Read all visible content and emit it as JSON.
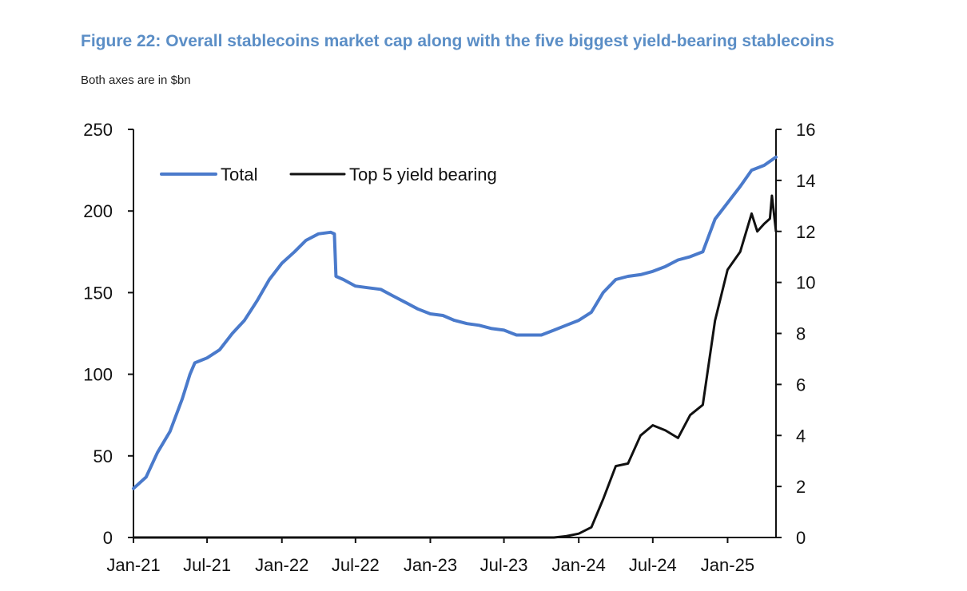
{
  "figure": {
    "title": "Figure 22: Overall stablecoins market cap along with the five biggest yield-bearing stablecoins",
    "subtitle": "Both axes are in $bn"
  },
  "chart_data": {
    "type": "line",
    "title": "Figure 22: Overall stablecoins market cap along with the five biggest yield-bearing stablecoins",
    "subtitle": "Both axes are in $bn",
    "xlabel": "",
    "ylabel": "",
    "x_ticks": [
      "Jan-21",
      "Jul-21",
      "Jan-22",
      "Jul-22",
      "Jan-23",
      "Jul-23",
      "Jan-24",
      "Jul-24",
      "Jan-25"
    ],
    "x_range": [
      "2021-01-01",
      "2025-04-30"
    ],
    "y_left": {
      "range": [
        0,
        250
      ],
      "ticks": [
        0,
        50,
        100,
        150,
        200,
        250
      ]
    },
    "y_right": {
      "range": [
        0,
        16
      ],
      "ticks": [
        0,
        2,
        4,
        6,
        8,
        10,
        12,
        14,
        16
      ]
    },
    "grid": false,
    "legend": {
      "position": "top-left",
      "entries": [
        "Total",
        "Top 5 yield bearing"
      ]
    },
    "series": [
      {
        "name": "Total",
        "axis": "left",
        "color": "#4a7acb",
        "points": [
          [
            "2021-01-01",
            30
          ],
          [
            "2021-02-01",
            37
          ],
          [
            "2021-03-01",
            52
          ],
          [
            "2021-04-01",
            65
          ],
          [
            "2021-05-01",
            85
          ],
          [
            "2021-05-20",
            100
          ],
          [
            "2021-06-01",
            107
          ],
          [
            "2021-07-01",
            110
          ],
          [
            "2021-08-01",
            115
          ],
          [
            "2021-09-01",
            125
          ],
          [
            "2021-10-01",
            133
          ],
          [
            "2021-11-01",
            145
          ],
          [
            "2021-12-01",
            158
          ],
          [
            "2022-01-01",
            168
          ],
          [
            "2022-02-01",
            175
          ],
          [
            "2022-03-01",
            182
          ],
          [
            "2022-04-01",
            186
          ],
          [
            "2022-05-01",
            187
          ],
          [
            "2022-05-10",
            186
          ],
          [
            "2022-05-14",
            160
          ],
          [
            "2022-06-01",
            158
          ],
          [
            "2022-07-01",
            154
          ],
          [
            "2022-08-01",
            153
          ],
          [
            "2022-09-01",
            152
          ],
          [
            "2022-10-01",
            148
          ],
          [
            "2022-11-01",
            144
          ],
          [
            "2022-12-01",
            140
          ],
          [
            "2023-01-01",
            137
          ],
          [
            "2023-02-01",
            136
          ],
          [
            "2023-03-01",
            133
          ],
          [
            "2023-04-01",
            131
          ],
          [
            "2023-05-01",
            130
          ],
          [
            "2023-06-01",
            128
          ],
          [
            "2023-07-01",
            127
          ],
          [
            "2023-08-01",
            124
          ],
          [
            "2023-09-01",
            124
          ],
          [
            "2023-10-01",
            124
          ],
          [
            "2023-11-01",
            127
          ],
          [
            "2023-12-01",
            130
          ],
          [
            "2024-01-01",
            133
          ],
          [
            "2024-02-01",
            138
          ],
          [
            "2024-03-01",
            150
          ],
          [
            "2024-04-01",
            158
          ],
          [
            "2024-05-01",
            160
          ],
          [
            "2024-06-01",
            161
          ],
          [
            "2024-07-01",
            163
          ],
          [
            "2024-08-01",
            166
          ],
          [
            "2024-09-01",
            170
          ],
          [
            "2024-10-01",
            172
          ],
          [
            "2024-11-01",
            175
          ],
          [
            "2024-12-01",
            195
          ],
          [
            "2025-01-01",
            205
          ],
          [
            "2025-02-01",
            215
          ],
          [
            "2025-03-01",
            225
          ],
          [
            "2025-04-01",
            228
          ],
          [
            "2025-04-30",
            233
          ]
        ]
      },
      {
        "name": "Top 5 yield bearing",
        "axis": "right",
        "color": "#111111",
        "points": [
          [
            "2021-01-01",
            0
          ],
          [
            "2023-11-01",
            0
          ],
          [
            "2023-12-01",
            0.05
          ],
          [
            "2024-01-01",
            0.15
          ],
          [
            "2024-02-01",
            0.4
          ],
          [
            "2024-03-01",
            1.5
          ],
          [
            "2024-04-01",
            2.8
          ],
          [
            "2024-05-01",
            2.9
          ],
          [
            "2024-06-01",
            4.0
          ],
          [
            "2024-07-01",
            4.4
          ],
          [
            "2024-08-01",
            4.2
          ],
          [
            "2024-09-01",
            3.9
          ],
          [
            "2024-10-01",
            4.8
          ],
          [
            "2024-11-01",
            5.2
          ],
          [
            "2024-12-01",
            8.5
          ],
          [
            "2025-01-01",
            10.5
          ],
          [
            "2025-02-01",
            11.2
          ],
          [
            "2025-03-01",
            12.7
          ],
          [
            "2025-03-15",
            12.0
          ],
          [
            "2025-04-01",
            12.3
          ],
          [
            "2025-04-15",
            12.5
          ],
          [
            "2025-04-20",
            13.4
          ],
          [
            "2025-04-30",
            12.0
          ]
        ]
      }
    ]
  }
}
